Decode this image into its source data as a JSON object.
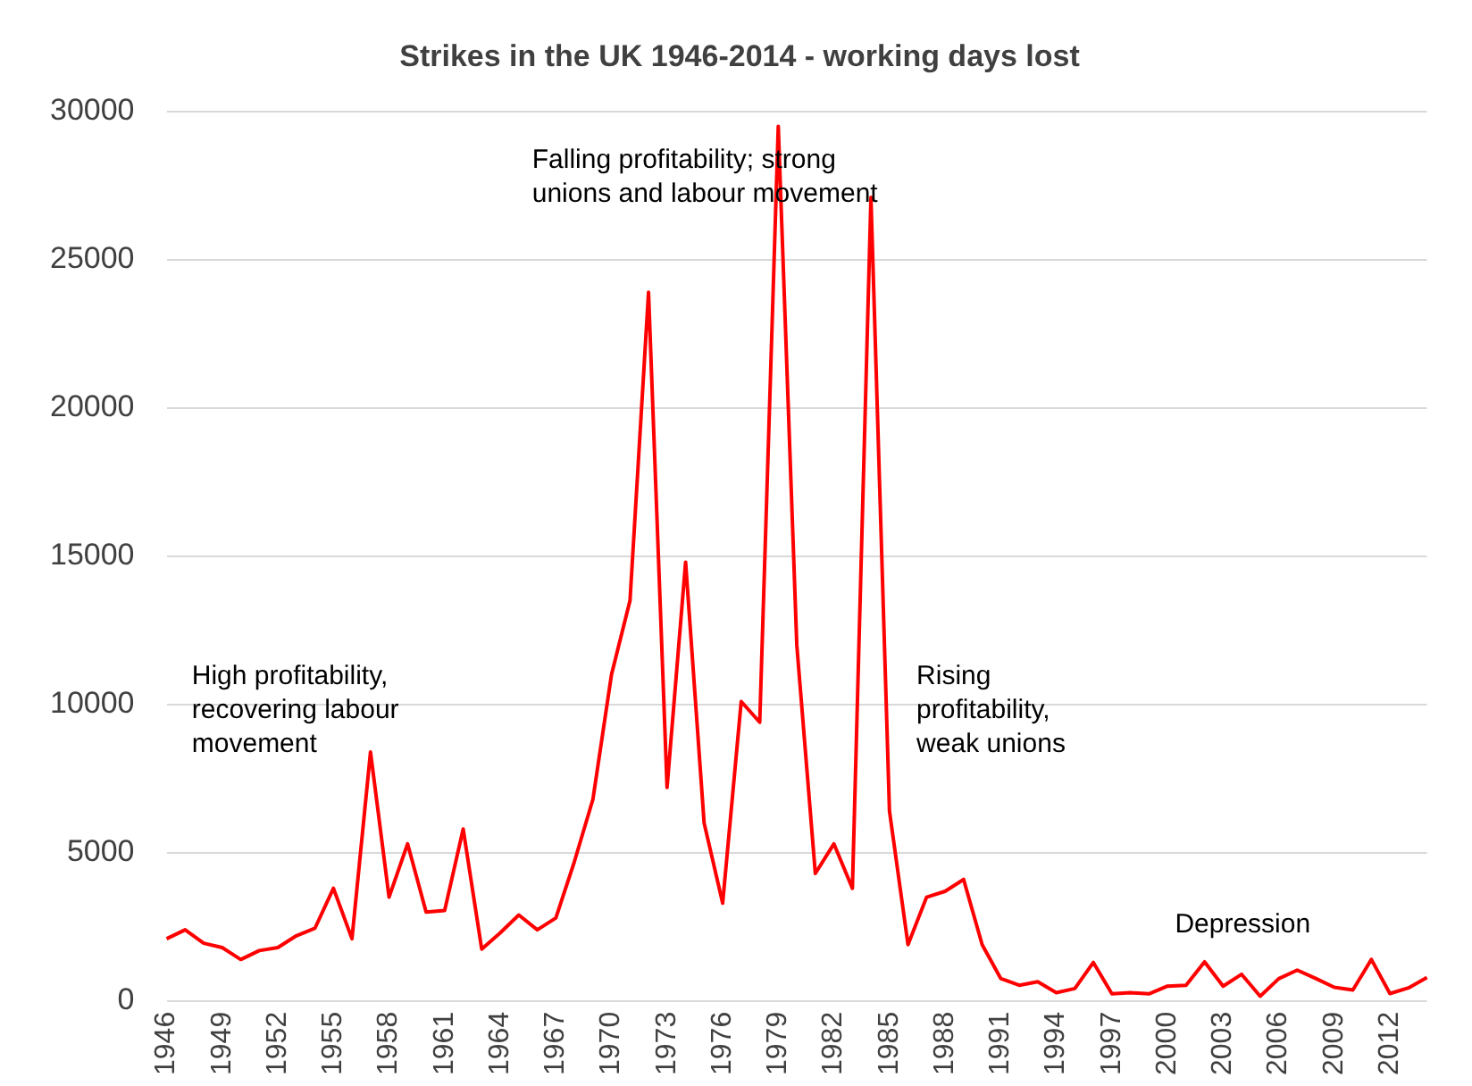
{
  "chart_data": {
    "type": "line",
    "title": "Strikes in the UK 1946-2014 - working days lost",
    "categories": [
      "1946",
      null,
      null,
      "1949",
      null,
      null,
      "1952",
      null,
      null,
      "1955",
      null,
      null,
      "1958",
      null,
      null,
      "1961",
      null,
      null,
      "1964",
      null,
      null,
      "1967",
      null,
      null,
      "1970",
      null,
      null,
      "1973",
      null,
      null,
      "1976",
      null,
      null,
      "1979",
      null,
      null,
      "1982",
      null,
      null,
      "1985",
      null,
      null,
      "1988",
      null,
      null,
      "1991",
      null,
      null,
      "1994",
      null,
      null,
      "1997",
      null,
      null,
      "2000",
      null,
      null,
      "2003",
      null,
      null,
      "2006",
      null,
      null,
      "2009",
      null,
      null,
      "2012",
      null,
      null
    ],
    "series": [
      {
        "color": "#ff0000",
        "values": [
          2100,
          2400,
          1950,
          1800,
          1400,
          1700,
          1800,
          2200,
          2450,
          3800,
          2100,
          8400,
          3500,
          5300,
          3000,
          3050,
          5800,
          1750,
          2300,
          2900,
          2400,
          2800,
          4700,
          6800,
          11000,
          13500,
          23900,
          7200,
          14800,
          6000,
          3300,
          10100,
          9400,
          29500,
          12000,
          4300,
          5300,
          3800,
          27100,
          6400,
          1900,
          3500,
          3700,
          4100,
          1900,
          760,
          530,
          650,
          280,
          420,
          1300,
          240,
          280,
          240,
          500,
          530,
          1320,
          500,
          900,
          160,
          750,
          1040,
          760,
          460,
          370,
          1400,
          250,
          440,
          790
        ]
      }
    ],
    "ylim": [
      0,
      30000
    ],
    "yticks": [
      0,
      5000,
      10000,
      15000,
      20000,
      25000,
      30000
    ],
    "grid": "y",
    "legend": false,
    "marker": "none",
    "line_style": "solid",
    "annotations": [
      "High profitability,\nrecovering labour\nmovement",
      "Falling profitability; strong\nunions and labour movement",
      "Rising\nprofitability,\nweak unions",
      "Depression"
    ]
  }
}
